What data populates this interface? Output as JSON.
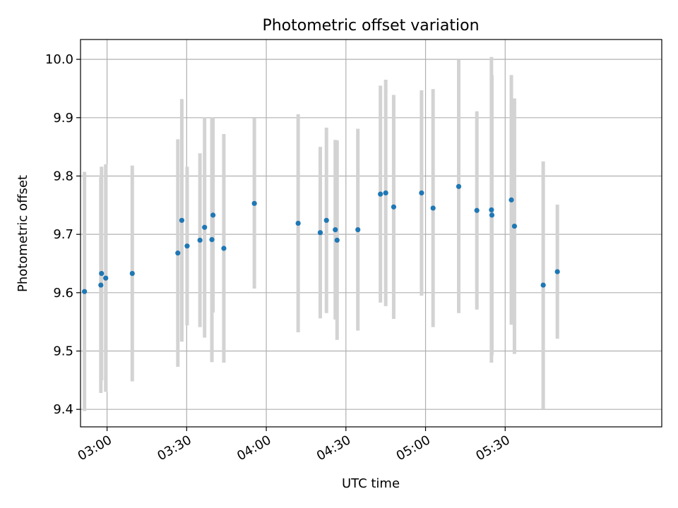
{
  "chart_data": {
    "type": "scatter",
    "title": "Photometric offset variation",
    "xlabel": "UTC time",
    "ylabel": "Photometric offset",
    "xlim": [
      "02:50",
      "06:29"
    ],
    "ylim": [
      9.37,
      10.034
    ],
    "grid": true,
    "x_ticks": [
      "03:00",
      "03:30",
      "04:00",
      "04:30",
      "05:00",
      "05:30"
    ],
    "y_ticks": [
      9.4,
      9.5,
      9.6,
      9.7,
      9.8,
      9.9,
      10.0
    ],
    "y_tick_labels": [
      "9.4",
      "9.5",
      "9.6",
      "9.7",
      "9.8",
      "9.9",
      "10.0"
    ],
    "marker_color": "#1f77b4",
    "errorbar_color": "#d3d3d3",
    "series": [
      {
        "points": [
          {
            "t": "02:51:30",
            "y": 9.602,
            "err": 0.205
          },
          {
            "t": "02:57:40",
            "y": 9.613,
            "err": 0.185
          },
          {
            "t": "02:57:55",
            "y": 9.633,
            "err": 0.183
          },
          {
            "t": "02:59:30",
            "y": 9.625,
            "err": 0.195
          },
          {
            "t": "03:09:30",
            "y": 9.633,
            "err": 0.185
          },
          {
            "t": "03:26:40",
            "y": 9.668,
            "err": 0.195
          },
          {
            "t": "03:28:10",
            "y": 9.724,
            "err": 0.208
          },
          {
            "t": "03:30:10",
            "y": 9.68,
            "err": 0.136
          },
          {
            "t": "03:35:00",
            "y": 9.69,
            "err": 0.149
          },
          {
            "t": "03:36:45",
            "y": 9.712,
            "err": 0.189
          },
          {
            "t": "03:39:55",
            "y": 9.733,
            "err": 0.167
          },
          {
            "t": "03:39:30",
            "y": 9.691,
            "err": 0.21
          },
          {
            "t": "03:44:00",
            "y": 9.676,
            "err": 0.196
          },
          {
            "t": "03:55:30",
            "y": 9.753,
            "err": 0.146
          },
          {
            "t": "04:12:00",
            "y": 9.719,
            "err": 0.187
          },
          {
            "t": "04:20:20",
            "y": 9.703,
            "err": 0.147
          },
          {
            "t": "04:22:40",
            "y": 9.724,
            "err": 0.159
          },
          {
            "t": "04:26:00",
            "y": 9.708,
            "err": 0.154
          },
          {
            "t": "04:26:40",
            "y": 9.69,
            "err": 0.171
          },
          {
            "t": "04:34:30",
            "y": 9.708,
            "err": 0.173
          },
          {
            "t": "04:43:00",
            "y": 9.769,
            "err": 0.186
          },
          {
            "t": "04:45:00",
            "y": 9.771,
            "err": 0.194
          },
          {
            "t": "04:48:00",
            "y": 9.747,
            "err": 0.192
          },
          {
            "t": "04:58:30",
            "y": 9.771,
            "err": 0.176
          },
          {
            "t": "05:02:50",
            "y": 9.745,
            "err": 0.204
          },
          {
            "t": "05:12:30",
            "y": 9.782,
            "err": 0.217
          },
          {
            "t": "05:19:20",
            "y": 9.741,
            "err": 0.17
          },
          {
            "t": "05:24:50",
            "y": 9.742,
            "err": 0.262
          },
          {
            "t": "05:25:00",
            "y": 9.733,
            "err": 0.24
          },
          {
            "t": "05:32:20",
            "y": 9.759,
            "err": 0.214
          },
          {
            "t": "05:33:30",
            "y": 9.714,
            "err": 0.219
          },
          {
            "t": "05:44:20",
            "y": 9.613,
            "err": 0.212
          },
          {
            "t": "05:49:40",
            "y": 9.636,
            "err": 0.115
          }
        ]
      }
    ]
  }
}
